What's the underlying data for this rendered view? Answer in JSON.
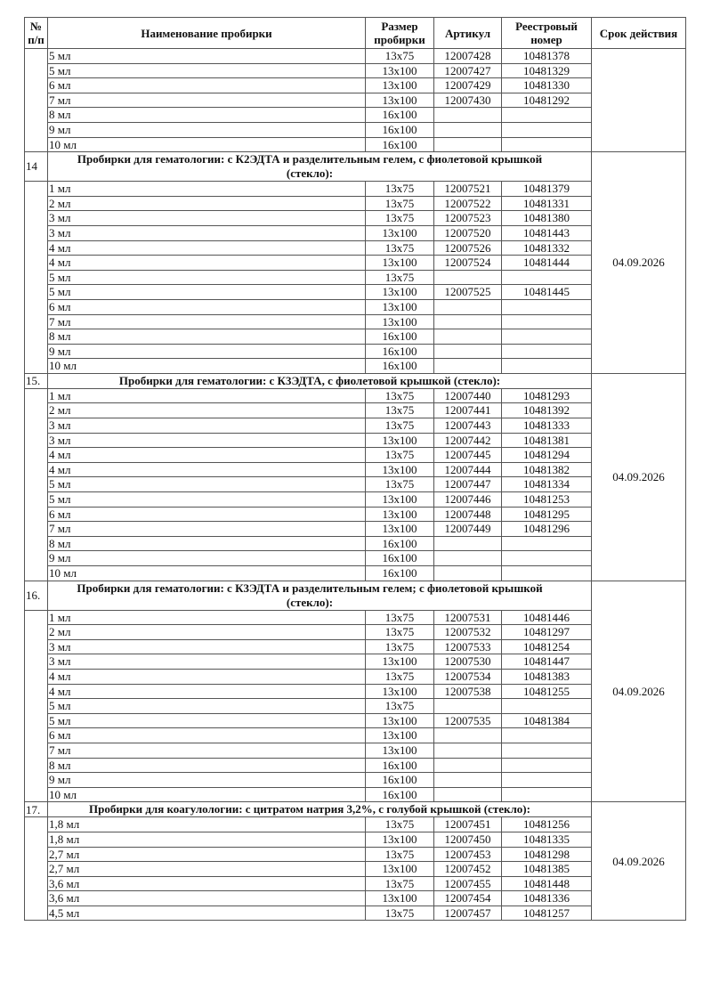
{
  "header": {
    "num": "№ п/п",
    "name": "Наименование пробирки",
    "size": "Размер пробирки",
    "article": "Артикул",
    "registry": "Реестровый номер",
    "expiry": "Срок действия"
  },
  "sections": [
    {
      "num": "",
      "title": "",
      "expiry": "",
      "rows": [
        [
          "5 мл",
          "13x75",
          "12007428",
          "10481378"
        ],
        [
          "5 мл",
          "13x100",
          "12007427",
          "10481329"
        ],
        [
          "6 мл",
          "13x100",
          "12007429",
          "10481330"
        ],
        [
          "7 мл",
          "13x100",
          "12007430",
          "10481292"
        ],
        [
          "8 мл",
          "16x100",
          "",
          ""
        ],
        [
          "9 мл",
          "16x100",
          "",
          ""
        ],
        [
          "10 мл",
          "16x100",
          "",
          ""
        ]
      ]
    },
    {
      "num": "14",
      "title": "Пробирки для гематологии: с К2ЭДТА и разделительным гелем, с фиолетовой крышкой (стекло):",
      "expiry": "04.09.2026",
      "rows": [
        [
          "1 мл",
          "13x75",
          "12007521",
          "10481379"
        ],
        [
          "2 мл",
          "13x75",
          "12007522",
          "10481331"
        ],
        [
          "3 мл",
          "13x75",
          "12007523",
          "10481380"
        ],
        [
          "3 мл",
          "13x100",
          "12007520",
          "10481443"
        ],
        [
          "4 мл",
          "13x75",
          "12007526",
          "10481332"
        ],
        [
          "4 мл",
          "13x100",
          "12007524",
          "10481444"
        ],
        [
          "5 мл",
          "13x75",
          "",
          ""
        ],
        [
          "5 мл",
          "13x100",
          "12007525",
          "10481445"
        ],
        [
          "6 мл",
          "13x100",
          "",
          ""
        ],
        [
          "7 мл",
          "13x100",
          "",
          ""
        ],
        [
          "8 мл",
          "16x100",
          "",
          ""
        ],
        [
          "9 мл",
          "16x100",
          "",
          ""
        ],
        [
          "10 мл",
          "16x100",
          "",
          ""
        ]
      ]
    },
    {
      "num": "15.",
      "title": "Пробирки для гематологии: с К3ЭДТА, с фиолетовой крышкой (стекло):",
      "expiry": "04.09.2026",
      "rows": [
        [
          "1 мл",
          "13x75",
          "12007440",
          "10481293"
        ],
        [
          "2 мл",
          "13x75",
          "12007441",
          "10481392"
        ],
        [
          "3 мл",
          "13x75",
          "12007443",
          "10481333"
        ],
        [
          "3 мл",
          "13x100",
          "12007442",
          "10481381"
        ],
        [
          "4 мл",
          "13x75",
          "12007445",
          "10481294"
        ],
        [
          "4 мл",
          "13x100",
          "12007444",
          "10481382"
        ],
        [
          "5 мл",
          "13x75",
          "12007447",
          "10481334"
        ],
        [
          "5 мл",
          "13x100",
          "12007446",
          "10481253"
        ],
        [
          "6 мл",
          "13x100",
          "12007448",
          "10481295"
        ],
        [
          "7 мл",
          "13x100",
          "12007449",
          "10481296"
        ],
        [
          "8 мл",
          "16x100",
          "",
          ""
        ],
        [
          "9 мл",
          "16x100",
          "",
          ""
        ],
        [
          "10 мл",
          "16x100",
          "",
          ""
        ]
      ]
    },
    {
      "num": "16.",
      "title": "Пробирки для гематологии: с К3ЭДТА и разделительным гелем; с фиолетовой крышкой (стекло):",
      "expiry": "04.09.2026",
      "rows": [
        [
          "1 мл",
          "13x75",
          "12007531",
          "10481446"
        ],
        [
          "2 мл",
          "13x75",
          "12007532",
          "10481297"
        ],
        [
          "3 мл",
          "13x75",
          "12007533",
          "10481254"
        ],
        [
          "3 мл",
          "13x100",
          "12007530",
          "10481447"
        ],
        [
          "4 мл",
          "13x75",
          "12007534",
          "10481383"
        ],
        [
          "4 мл",
          "13x100",
          "12007538",
          "10481255"
        ],
        [
          "5 мл",
          "13x75",
          "",
          ""
        ],
        [
          "5 мл",
          "13x100",
          "12007535",
          "10481384"
        ],
        [
          "6 мл",
          "13x100",
          "",
          ""
        ],
        [
          "7 мл",
          "13x100",
          "",
          ""
        ],
        [
          "8 мл",
          "16x100",
          "",
          ""
        ],
        [
          "9 мл",
          "16x100",
          "",
          ""
        ],
        [
          "10 мл",
          "16x100",
          "",
          ""
        ]
      ]
    },
    {
      "num": "17.",
      "title": "Пробирки для коагулологии: с цитратом натрия 3,2%, с голубой крышкой (стекло):",
      "expiry": "04.09.2026",
      "rows": [
        [
          "1,8 мл",
          "13x75",
          "12007451",
          "10481256"
        ],
        [
          "1,8 мл",
          "13x100",
          "12007450",
          "10481335"
        ],
        [
          "2,7 мл",
          "13x75",
          "12007453",
          "10481298"
        ],
        [
          "2,7 мл",
          "13x100",
          "12007452",
          "10481385"
        ],
        [
          "3,6 мл",
          "13x75",
          "12007455",
          "10481448"
        ],
        [
          "3,6 мл",
          "13x100",
          "12007454",
          "10481336"
        ],
        [
          "4,5 мл",
          "13x75",
          "12007457",
          "10481257"
        ]
      ]
    }
  ]
}
